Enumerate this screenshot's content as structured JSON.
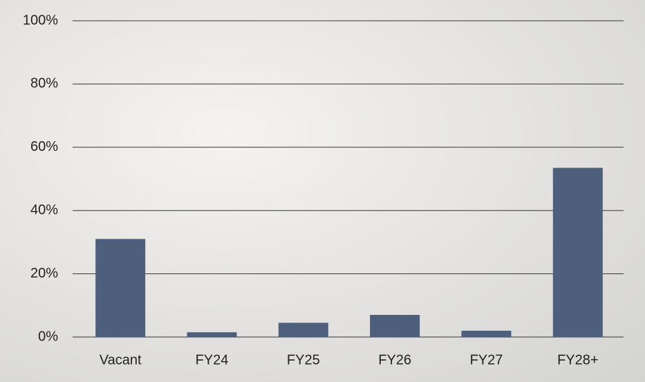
{
  "chart_data": {
    "type": "bar",
    "categories": [
      "Vacant",
      "FY24",
      "FY25",
      "FY26",
      "FY27",
      "FY28+"
    ],
    "values": [
      31,
      1.5,
      4.5,
      7,
      2,
      53.5
    ],
    "color": "#4d5f7a",
    "ylim": [
      0,
      100
    ],
    "yticks": [
      {
        "value": 0,
        "label": "0%"
      },
      {
        "value": 20,
        "label": "20%"
      },
      {
        "value": 40,
        "label": "40%"
      },
      {
        "value": 60,
        "label": "60%"
      },
      {
        "value": 80,
        "label": "80%"
      },
      {
        "value": 100,
        "label": "100%"
      }
    ],
    "grid": true
  }
}
